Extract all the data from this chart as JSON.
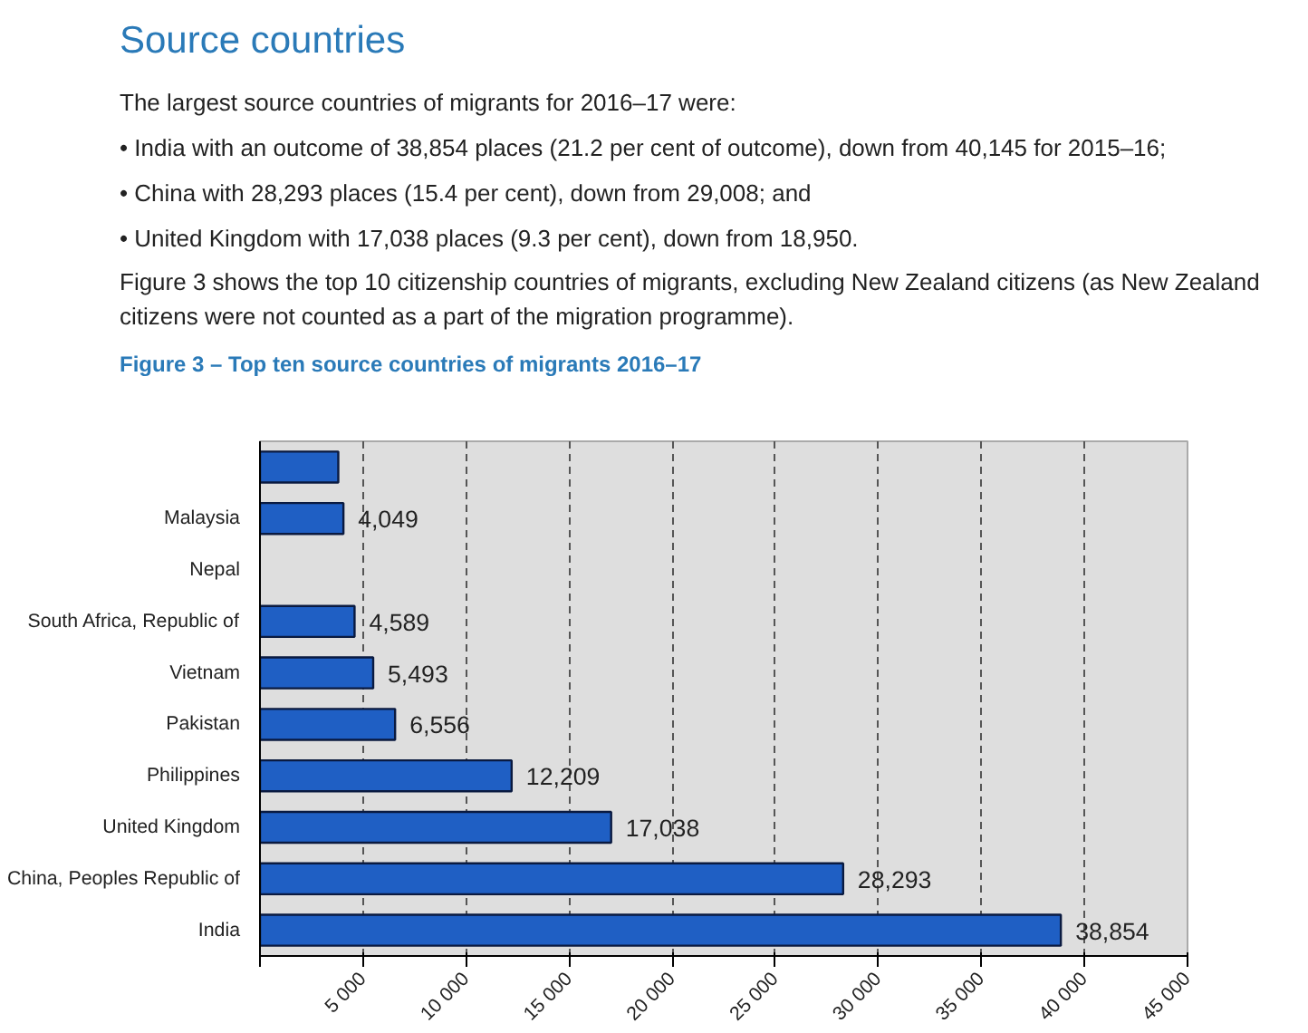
{
  "chart_data": {
    "type": "bar",
    "orientation": "horizontal",
    "title": "Source countries",
    "subtitle": "Figure 3 – Top ten source countries of migrants 2016–17",
    "annotations": [
      "The largest source countries of migrants for 2016–17 were:",
      "• India with an outcome of 38,854 places (21.2 per cent of outcome), down from 40,145 for 2015–16;",
      "• China with 28,293 places (15.4 per cent), down from 29,008; and",
      "• United Kingdom with 17,038 places (9.3 per cent), down from 18,950.",
      "Figure 3 shows the top 10 citizenship countries of migrants, excluding New Zealand citizens (as New Zealand citizens were not counted as a part of the migration programme)."
    ],
    "categories": [
      null,
      "Malaysia",
      "Nepal",
      "South Africa, Republic of",
      "Vietnam",
      "Pakistan",
      "Philippines",
      "United Kingdom",
      "China, Peoples Republic of",
      "India"
    ],
    "values": [
      3800,
      4049,
      null,
      4589,
      5493,
      6556,
      12209,
      17038,
      28293,
      38854
    ],
    "value_labels": [
      null,
      "4,049",
      null,
      "4,589",
      "5,493",
      "6,556",
      "12,209",
      "17,038",
      "28,293",
      "38,854"
    ],
    "color": "#1f5fc4",
    "xlim": [
      0,
      45000
    ],
    "xticks": [
      {
        "value": 0,
        "label": null
      },
      {
        "value": 5000,
        "label": "5 000"
      },
      {
        "value": 10000,
        "label": "10 000"
      },
      {
        "value": 15000,
        "label": "15 000"
      },
      {
        "value": 20000,
        "label": "20 000"
      },
      {
        "value": 25000,
        "label": "25 000"
      },
      {
        "value": 30000,
        "label": "30 000"
      },
      {
        "value": 35000,
        "label": "35 000"
      },
      {
        "value": 40000,
        "label": "40 000"
      },
      {
        "value": 45000,
        "label": "45 000"
      }
    ],
    "grid": "x"
  }
}
